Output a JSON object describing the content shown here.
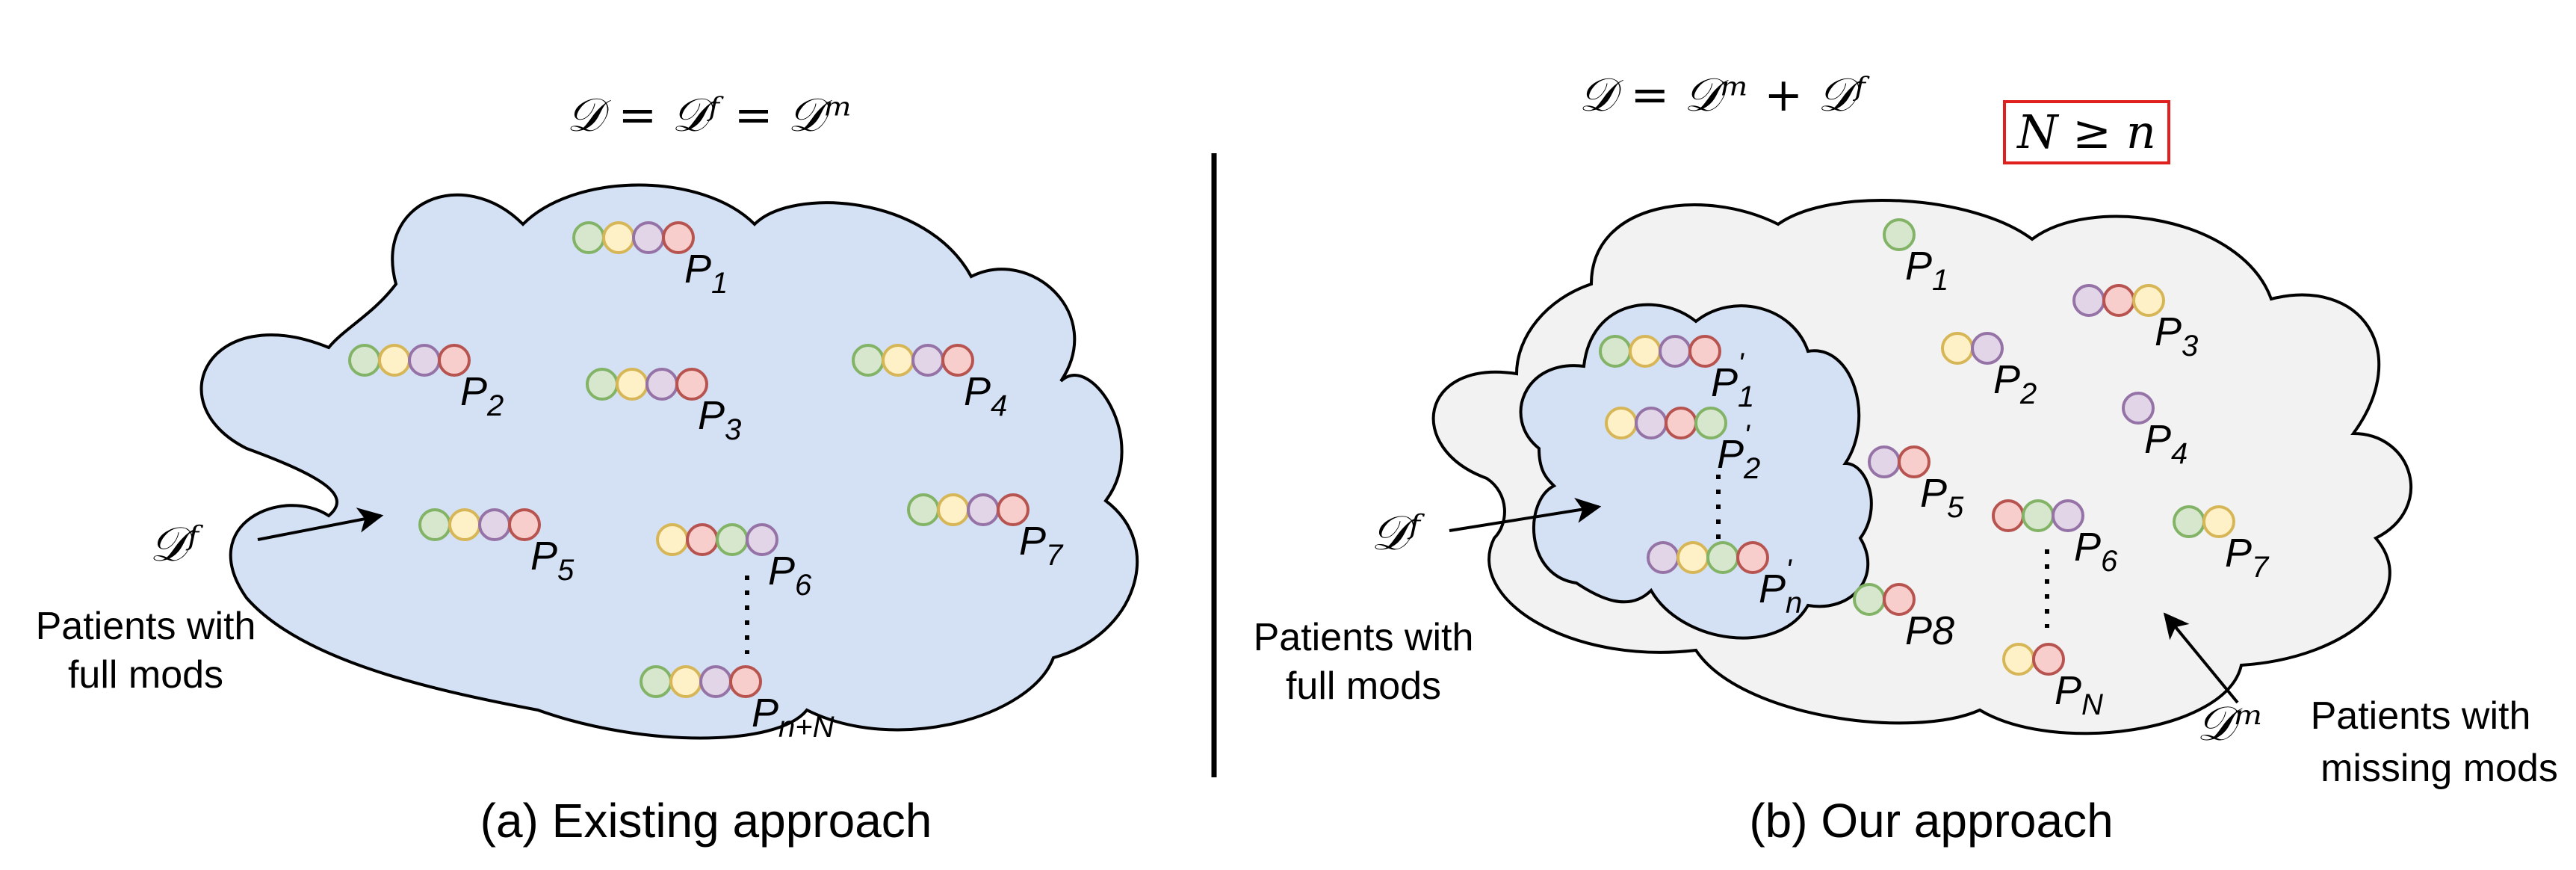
{
  "colors": {
    "cloud_a_fill": "#d4e1f4",
    "cloud_b_fill": "#f2f2f2",
    "inner_cloud_fill": "#d4e1f4",
    "outline": "#000000",
    "condition_box": "#e0201e",
    "mod_green": {
      "fill": "#d6e7cd",
      "stroke": "#82b366"
    },
    "mod_yellow": {
      "fill": "#fff1c7",
      "stroke": "#d6b656"
    },
    "mod_purple": {
      "fill": "#e1d5e7",
      "stroke": "#9673a6"
    },
    "mod_red": {
      "fill": "#f8cecc",
      "stroke": "#b85450"
    }
  },
  "panel_a": {
    "equation": "𝒟 = 𝒟ᶠ = 𝒟ᵐ",
    "pointer_label": "𝒟ᶠ",
    "desc_line1": "Patients with",
    "desc_line2": "full mods",
    "caption": "(a) Existing approach",
    "patients": [
      {
        "label": "P",
        "sub": "1",
        "mods": [
          "green",
          "yellow",
          "purple",
          "red"
        ]
      },
      {
        "label": "P",
        "sub": "2",
        "mods": [
          "green",
          "yellow",
          "purple",
          "red"
        ]
      },
      {
        "label": "P",
        "sub": "3",
        "mods": [
          "green",
          "yellow",
          "purple",
          "red"
        ]
      },
      {
        "label": "P",
        "sub": "4",
        "mods": [
          "green",
          "yellow",
          "purple",
          "red"
        ]
      },
      {
        "label": "P",
        "sub": "5",
        "mods": [
          "green",
          "yellow",
          "purple",
          "red"
        ]
      },
      {
        "label": "P",
        "sub": "6",
        "mods": [
          "yellow",
          "red",
          "green",
          "purple"
        ]
      },
      {
        "label": "P",
        "sub": "7",
        "mods": [
          "green",
          "yellow",
          "purple",
          "red"
        ]
      },
      {
        "label": "P",
        "sub": "n+N",
        "mods": [
          "green",
          "yellow",
          "purple",
          "red"
        ]
      }
    ]
  },
  "panel_b": {
    "equation": "𝒟 = 𝒟ᵐ + 𝒟ᶠ",
    "condition": "N ≥ n",
    "full_pointer_label": "𝒟ᶠ",
    "full_desc_line1": "Patients with",
    "full_desc_line2": "full mods",
    "missing_pointer_label": "𝒟ᵐ",
    "missing_desc_line1": "Patients with",
    "missing_desc_line2": "missing mods",
    "caption": "(b) Our approach",
    "full_patients": [
      {
        "label": "P",
        "sub": "1",
        "prime": "'",
        "mods": [
          "green",
          "yellow",
          "purple",
          "red"
        ]
      },
      {
        "label": "P",
        "sub": "2",
        "prime": "'",
        "mods": [
          "yellow",
          "purple",
          "red",
          "green"
        ]
      },
      {
        "label": "P",
        "sub": "n",
        "prime": "'",
        "mods": [
          "purple",
          "yellow",
          "green",
          "red"
        ]
      }
    ],
    "missing_patients": [
      {
        "label": "P",
        "sub": "1",
        "mods": [
          "green"
        ]
      },
      {
        "label": "P",
        "sub": "2",
        "mods": [
          "yellow",
          "purple"
        ]
      },
      {
        "label": "P",
        "sub": "3",
        "mods": [
          "purple",
          "red",
          "yellow"
        ]
      },
      {
        "label": "P",
        "sub": "4",
        "mods": [
          "purple"
        ]
      },
      {
        "label": "P",
        "sub": "5",
        "mods": [
          "purple",
          "red"
        ]
      },
      {
        "label": "P",
        "sub": "6",
        "mods": [
          "red",
          "green",
          "purple"
        ]
      },
      {
        "label": "P",
        "sub": "7",
        "mods": [
          "green",
          "yellow"
        ]
      },
      {
        "label": "P8",
        "sub": "",
        "mods": [
          "green",
          "red"
        ]
      },
      {
        "label": "P",
        "sub": "N",
        "mods": [
          "yellow",
          "red"
        ]
      }
    ]
  }
}
